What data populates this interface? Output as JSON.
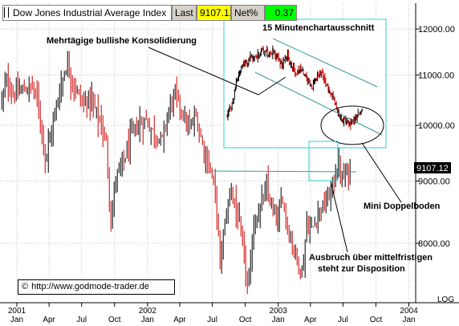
{
  "header": {
    "name": "Dow Jones Industrial Average Index",
    "last_label": "Last",
    "last_value": "9107.12",
    "net_label": "Net%",
    "net_value": "0.37"
  },
  "price_tag": "9107.12",
  "scale_label": "LOG",
  "copyright": {
    "symbol": "©",
    "text": "http://www.godmode-trader.de"
  },
  "annotations": {
    "consolidation": "Mehrtägige bullishe Konsolidierung",
    "inset_title": "15 Minutenchartausschnitt",
    "double_bottom": "Mini Doppelboden",
    "breakout_line1": "Ausbruch über mittelfristigen",
    "breakout_line2": "steht zur Disposition"
  },
  "colors": {
    "up_bar": "#000000",
    "down_bar": "#cc0000",
    "inset_frame": "#33cccc",
    "support_line": "#339999",
    "grid": "#c0c0c0"
  },
  "chart_data": [
    {
      "type": "ohlc",
      "y_scale": "log",
      "ylim": [
        7150,
        12600
      ],
      "yticks": [
        8000,
        9000,
        10000,
        11000,
        12000
      ],
      "ytick_labels": [
        "8000.00",
        "9000.00",
        "10000.00",
        "11000.00",
        "12000.00"
      ],
      "x_domain": [
        "2000-11-15",
        "2004-01-20"
      ],
      "xticks": [
        {
          "date": "2001-01-01",
          "label": "Jan"
        },
        {
          "date": "2001-04-01",
          "label": "Apr"
        },
        {
          "date": "2001-07-01",
          "label": "Jul"
        },
        {
          "date": "2001-10-01",
          "label": "Oct"
        },
        {
          "date": "2002-01-01",
          "label": "Jan"
        },
        {
          "date": "2002-04-01",
          "label": "Apr"
        },
        {
          "date": "2002-07-01",
          "label": "Jul"
        },
        {
          "date": "2002-10-01",
          "label": "Oct"
        },
        {
          "date": "2003-01-01",
          "label": "Jan"
        },
        {
          "date": "2003-04-01",
          "label": "Apr"
        },
        {
          "date": "2003-07-01",
          "label": "Jul"
        },
        {
          "date": "2003-10-01",
          "label": "Oct"
        },
        {
          "date": "2004-01-01",
          "label": "Jan"
        }
      ],
      "year_labels": [
        {
          "date": "2001-01-01",
          "label": "2001"
        },
        {
          "date": "2002-01-01",
          "label": "2002"
        },
        {
          "date": "2003-01-01",
          "label": "2003"
        },
        {
          "date": "2004-01-01",
          "label": "2004"
        }
      ],
      "close_path": [
        [
          "2000-11-20",
          10500
        ],
        [
          "2000-12-05",
          10900
        ],
        [
          "2000-12-20",
          10600
        ],
        [
          "2001-01-05",
          10650
        ],
        [
          "2001-01-25",
          10700
        ],
        [
          "2001-02-15",
          10800
        ],
        [
          "2001-03-05",
          10300
        ],
        [
          "2001-03-22",
          9400
        ],
        [
          "2001-04-05",
          9800
        ],
        [
          "2001-04-25",
          10500
        ],
        [
          "2001-05-20",
          11250
        ],
        [
          "2001-06-15",
          10700
        ],
        [
          "2001-07-05",
          10400
        ],
        [
          "2001-07-25",
          10550
        ],
        [
          "2001-08-20",
          10100
        ],
        [
          "2001-09-07",
          9700
        ],
        [
          "2001-09-21",
          8300
        ],
        [
          "2001-10-05",
          9100
        ],
        [
          "2001-10-25",
          9300
        ],
        [
          "2001-11-15",
          9800
        ],
        [
          "2001-12-05",
          10000
        ],
        [
          "2001-12-28",
          10100
        ],
        [
          "2002-01-20",
          9850
        ],
        [
          "2002-02-10",
          9700
        ],
        [
          "2002-03-05",
          10400
        ],
        [
          "2002-03-20",
          10600
        ],
        [
          "2002-04-10",
          10200
        ],
        [
          "2002-04-28",
          9900
        ],
        [
          "2002-05-15",
          10200
        ],
        [
          "2002-06-05",
          9600
        ],
        [
          "2002-06-25",
          9200
        ],
        [
          "2002-07-10",
          8800
        ],
        [
          "2002-07-23",
          7700
        ],
        [
          "2002-08-05",
          8300
        ],
        [
          "2002-08-22",
          8900
        ],
        [
          "2002-09-10",
          8400
        ],
        [
          "2002-09-25",
          7900
        ],
        [
          "2002-10-09",
          7300
        ],
        [
          "2002-10-25",
          8300
        ],
        [
          "2002-11-15",
          8600
        ],
        [
          "2002-11-29",
          8900
        ],
        [
          "2002-12-15",
          8500
        ],
        [
          "2002-12-31",
          8350
        ],
        [
          "2003-01-14",
          8750
        ],
        [
          "2003-01-28",
          8200
        ],
        [
          "2003-02-14",
          7900
        ],
        [
          "2003-03-11",
          7550
        ],
        [
          "2003-03-20",
          8300
        ],
        [
          "2003-04-05",
          8200
        ],
        [
          "2003-04-25",
          8500
        ],
        [
          "2003-05-15",
          8650
        ],
        [
          "2003-05-30",
          8850
        ],
        [
          "2003-06-17",
          9300
        ],
        [
          "2003-06-30",
          9000
        ],
        [
          "2003-07-14",
          9200
        ],
        [
          "2003-07-25",
          9100
        ]
      ]
    },
    {
      "type": "ohlc",
      "title": "15 Minutenchartausschnitt",
      "y_scale": "log",
      "ylim": [
        9150,
        12600
      ],
      "close_path": [
        [
          0,
          9900
        ],
        [
          2,
          10150
        ],
        [
          4,
          10900
        ],
        [
          6,
          11250
        ],
        [
          8,
          11350
        ],
        [
          10,
          11550
        ],
        [
          12,
          11450
        ],
        [
          14,
          11750
        ],
        [
          16,
          11600
        ],
        [
          18,
          11700
        ],
        [
          20,
          11500
        ],
        [
          22,
          11300
        ],
        [
          24,
          11550
        ],
        [
          26,
          11200
        ],
        [
          28,
          11050
        ],
        [
          30,
          11100
        ],
        [
          32,
          10850
        ],
        [
          34,
          10650
        ],
        [
          36,
          10950
        ],
        [
          38,
          11100
        ],
        [
          40,
          10600
        ],
        [
          42,
          10350
        ],
        [
          44,
          10000
        ],
        [
          46,
          9750
        ],
        [
          48,
          9720
        ],
        [
          50,
          9700
        ],
        [
          52,
          9850
        ],
        [
          54,
          10050
        ]
      ]
    }
  ]
}
